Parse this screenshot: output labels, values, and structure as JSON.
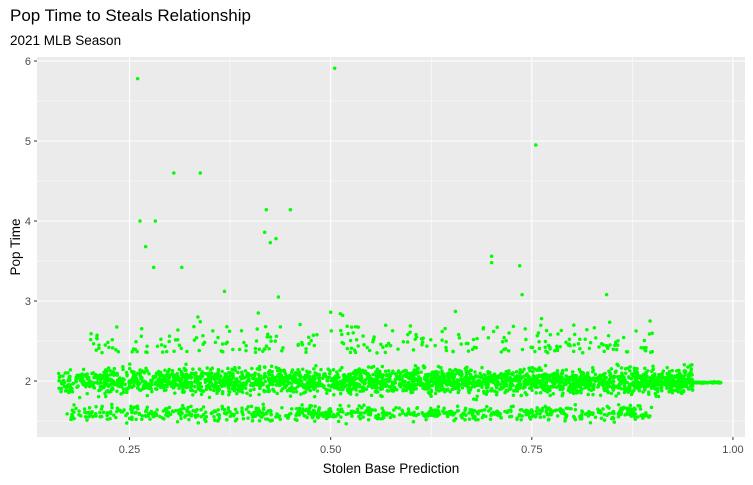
{
  "colors": {
    "panel_background": "#ebebeb",
    "grid": "#ffffff",
    "point": "#00ff00"
  },
  "chart_data": {
    "type": "scatter",
    "title": "Pop Time to Steals Relationship",
    "subtitle": "2021 MLB Season",
    "xlabel": "Stolen Base Prediction",
    "ylabel": "Pop Time",
    "xlim": [
      0.135,
      1.015
    ],
    "ylim": [
      1.3,
      6.05
    ],
    "x_ticks": [
      0.25,
      0.5,
      0.75,
      1.0
    ],
    "x_tick_labels": [
      "0.25",
      "0.50",
      "0.75",
      "1.00"
    ],
    "y_ticks": [
      2,
      3,
      4,
      5,
      6
    ],
    "y_tick_labels": [
      "2",
      "3",
      "4",
      "5",
      "6"
    ],
    "grid": true,
    "legend": "none",
    "outliers": [
      {
        "x": 0.26,
        "y": 5.78
      },
      {
        "x": 0.505,
        "y": 5.91
      },
      {
        "x": 0.755,
        "y": 4.95
      },
      {
        "x": 0.305,
        "y": 4.6
      },
      {
        "x": 0.338,
        "y": 4.6
      },
      {
        "x": 0.42,
        "y": 4.14
      },
      {
        "x": 0.45,
        "y": 4.14
      },
      {
        "x": 0.263,
        "y": 4.0
      },
      {
        "x": 0.282,
        "y": 4.0
      },
      {
        "x": 0.418,
        "y": 3.86
      },
      {
        "x": 0.432,
        "y": 3.78
      },
      {
        "x": 0.425,
        "y": 3.73
      },
      {
        "x": 0.27,
        "y": 3.68
      },
      {
        "x": 0.28,
        "y": 3.42
      },
      {
        "x": 0.315,
        "y": 3.42
      },
      {
        "x": 0.7,
        "y": 3.56
      },
      {
        "x": 0.7,
        "y": 3.48
      },
      {
        "x": 0.735,
        "y": 3.44
      },
      {
        "x": 0.368,
        "y": 3.12
      },
      {
        "x": 0.738,
        "y": 3.08
      },
      {
        "x": 0.843,
        "y": 3.08
      },
      {
        "x": 0.435,
        "y": 3.05
      },
      {
        "x": 0.5,
        "y": 2.86
      },
      {
        "x": 0.512,
        "y": 2.84
      },
      {
        "x": 0.335,
        "y": 2.8
      },
      {
        "x": 0.338,
        "y": 2.74
      },
      {
        "x": 0.897,
        "y": 2.75
      },
      {
        "x": 0.762,
        "y": 2.78
      },
      {
        "x": 0.41,
        "y": 2.85
      },
      {
        "x": 0.655,
        "y": 2.87
      },
      {
        "x": 0.515,
        "y": 2.82
      },
      {
        "x": 0.33,
        "y": 2.68
      }
    ],
    "clusters": [
      {
        "name": "main band",
        "y_center": 2.0,
        "y_spread": 0.11,
        "x_range": [
          0.16,
          0.95
        ],
        "count": 2600
      },
      {
        "name": "upper scatter",
        "y_center": 2.35,
        "y_spread": 0.22,
        "x_range": [
          0.2,
          0.9
        ],
        "count": 260
      },
      {
        "name": "lower band",
        "y_center": 1.6,
        "y_spread": 0.07,
        "x_range": [
          0.17,
          0.9
        ],
        "count": 700
      },
      {
        "name": "right tail",
        "y_center": 1.98,
        "y_spread": 0.005,
        "x_range": [
          0.9,
          0.985
        ],
        "count": 160
      }
    ]
  }
}
